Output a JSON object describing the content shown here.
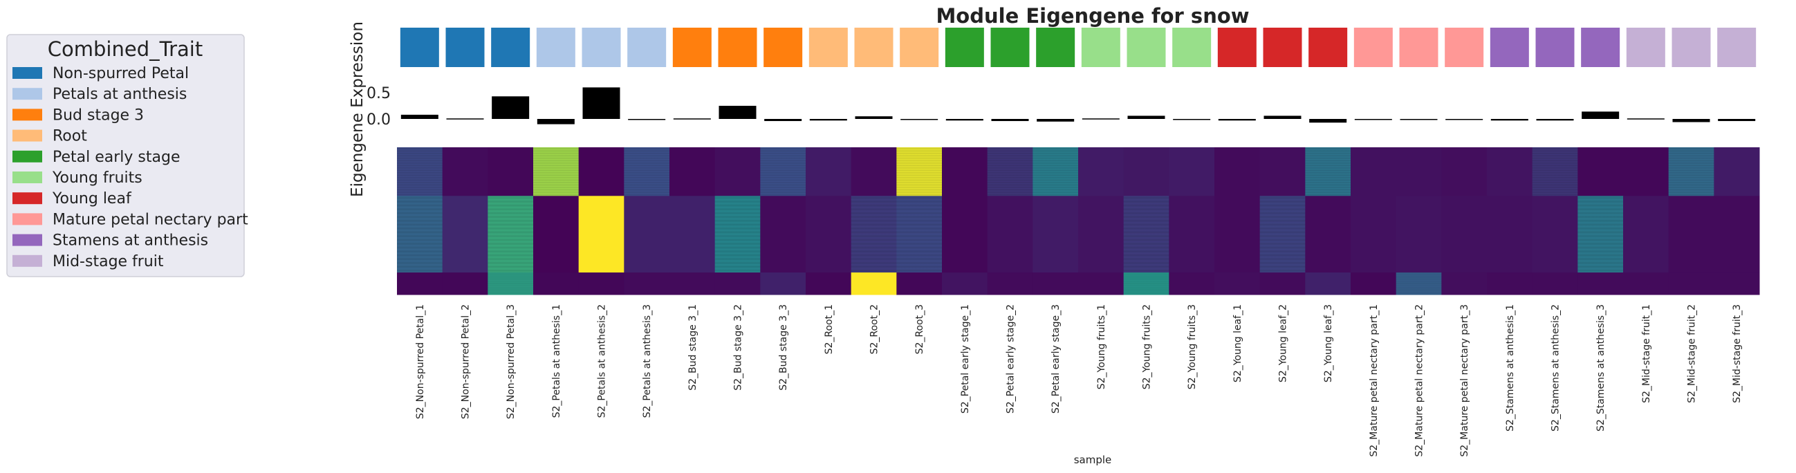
{
  "chart_data": {
    "type": "heatmap",
    "title": "Module Eigengene for snow",
    "xlabel": "sample",
    "ylabel": "Eigengene Expression",
    "bar_yticks": [
      "0.5",
      "0.0"
    ],
    "bar_ylim": [
      -0.15,
      0.62
    ],
    "legend": {
      "title": "Combined_Trait",
      "placement": "left",
      "entries": [
        {
          "label": "Non-spurred Petal",
          "color": "#1f77b4"
        },
        {
          "label": "Petals at anthesis",
          "color": "#aec7e8"
        },
        {
          "label": "Bud stage 3",
          "color": "#ff7f0e"
        },
        {
          "label": "Root",
          "color": "#ffbb78"
        },
        {
          "label": "Petal early stage",
          "color": "#2ca02c"
        },
        {
          "label": "Young fruits",
          "color": "#98df8a"
        },
        {
          "label": "Young leaf",
          "color": "#d62728"
        },
        {
          "label": "Mature petal nectary part",
          "color": "#ff9896"
        },
        {
          "label": "Stamens at anthesis",
          "color": "#9467bd"
        },
        {
          "label": "Mid-stage fruit",
          "color": "#c5b0d5"
        }
      ]
    },
    "samples": [
      "S2_Non-spurred Petal_1",
      "S2_Non-spurred Petal_2",
      "S2_Non-spurred Petal_3",
      "S2_Petals at anthesis_1",
      "S2_Petals at anthesis_2",
      "S2_Petals at anthesis_3",
      "S2_Bud stage 3_1",
      "S2_Bud stage 3_2",
      "S2_Bud stage 3_3",
      "S2_Root_1",
      "S2_Root_2",
      "S2_Root_3",
      "S2_Petal early stage_1",
      "S2_Petal early stage_2",
      "S2_Petal early stage_3",
      "S2_Young fruits_1",
      "S2_Young fruits_2",
      "S2_Young fruits_3",
      "S2_Young leaf_1",
      "S2_Young leaf_2",
      "S2_Young leaf_3",
      "S2_Mature petal nectary part_1",
      "S2_Mature petal nectary part_2",
      "S2_Mature petal nectary part_3",
      "S2_Stamens at anthesis_1",
      "S2_Stamens at anthesis_2",
      "S2_Stamens at anthesis_3",
      "S2_Mid-stage fruit_1",
      "S2_Mid-stage fruit_2",
      "S2_Mid-stage fruit_3"
    ],
    "sample_groups": [
      0,
      0,
      0,
      1,
      1,
      1,
      2,
      2,
      2,
      3,
      3,
      3,
      4,
      4,
      4,
      5,
      5,
      5,
      6,
      6,
      6,
      7,
      7,
      7,
      8,
      8,
      8,
      9,
      9,
      9
    ],
    "eigengene_values": [
      0.08,
      -0.01,
      0.43,
      -0.1,
      0.6,
      -0.02,
      -0.01,
      0.25,
      -0.04,
      -0.03,
      0.05,
      -0.02,
      -0.03,
      -0.04,
      -0.05,
      -0.01,
      0.06,
      -0.02,
      -0.03,
      0.06,
      -0.07,
      -0.02,
      -0.02,
      -0.02,
      -0.03,
      -0.03,
      0.14,
      -0.01,
      -0.06,
      -0.04
    ],
    "heatmap_colormap": [
      "#440154",
      "#3b528b",
      "#21918c",
      "#5ec962",
      "#fde725"
    ],
    "heatmap_zlim": [
      0,
      1
    ],
    "heatmap_bands": [
      {
        "weight": 0.33,
        "values": [
          0.22,
          0.03,
          0.02,
          0.85,
          0.01,
          0.24,
          0.02,
          0.04,
          0.24,
          0.08,
          0.03,
          0.96,
          0.02,
          0.16,
          0.42,
          0.08,
          0.07,
          0.08,
          0.03,
          0.04,
          0.38,
          0.05,
          0.05,
          0.04,
          0.06,
          0.16,
          0.02,
          0.02,
          0.34,
          0.08
        ]
      },
      {
        "weight": 0.52,
        "values": [
          0.32,
          0.12,
          0.6,
          0.01,
          1.0,
          0.1,
          0.1,
          0.45,
          0.03,
          0.05,
          0.18,
          0.22,
          0.02,
          0.05,
          0.08,
          0.06,
          0.18,
          0.05,
          0.03,
          0.2,
          0.03,
          0.05,
          0.06,
          0.05,
          0.05,
          0.06,
          0.4,
          0.06,
          0.03,
          0.03
        ]
      },
      {
        "weight": 0.15,
        "values": [
          0.02,
          0.02,
          0.55,
          0.02,
          0.02,
          0.03,
          0.03,
          0.03,
          0.1,
          0.02,
          1.0,
          0.02,
          0.06,
          0.03,
          0.03,
          0.03,
          0.52,
          0.03,
          0.04,
          0.03,
          0.1,
          0.02,
          0.3,
          0.04,
          0.03,
          0.03,
          0.03,
          0.03,
          0.03,
          0.03
        ]
      }
    ]
  }
}
